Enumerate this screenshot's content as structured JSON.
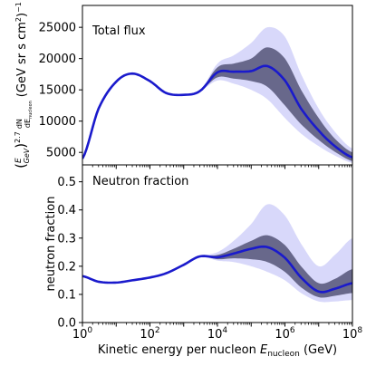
{
  "chart_data": [
    {
      "type": "line",
      "title": "Total flux",
      "xlabel": "",
      "ylabel": "(E/GeV)^2.7 dN/dE_nucleon (GeV sr s cm^2)^-1",
      "ylabel_parts": {
        "paren_open": "(",
        "frac_num": "E",
        "frac_den": "GeV",
        "paren_close": ")",
        "exp": "2.7",
        "frac2_num": "dN",
        "frac2_den": "dE",
        "frac2_den_sub": "nucleon",
        "units": "(GeV sr s cm",
        "units_sq": "2",
        "units_close": ")",
        "units_exp": "−1"
      },
      "x_scale": "log",
      "xlim": [
        1,
        100000000
      ],
      "ylim": [
        3000,
        28500
      ],
      "y_ticks": [
        5000,
        10000,
        15000,
        20000,
        25000
      ],
      "y_tick_labels": [
        "5000",
        "10000",
        "15000",
        "20000",
        "25000"
      ],
      "x": [
        1,
        3,
        10,
        30,
        100,
        300,
        1000,
        3000,
        10000,
        30000,
        100000,
        300000,
        1000000,
        3000000,
        10000000,
        30000000,
        100000000
      ],
      "series": [
        {
          "values": [
            4000,
            12000,
            16300,
            17600,
            16400,
            14500,
            14200,
            14800,
            17800,
            17900,
            18000,
            18800,
            16500,
            12000,
            8500,
            6000,
            4200
          ],
          "band_low": [
            4000,
            12000,
            16300,
            17600,
            16400,
            14500,
            14200,
            14800,
            17000,
            16800,
            16400,
            15500,
            12500,
            9500,
            7000,
            5100,
            3600
          ],
          "band_high": [
            4000,
            12000,
            16300,
            17600,
            16400,
            14500,
            14200,
            14800,
            18600,
            19200,
            20000,
            21800,
            20000,
            15000,
            10500,
            7200,
            5000
          ],
          "spread_low": [
            4000,
            12000,
            16300,
            17600,
            16400,
            14500,
            14200,
            14800,
            16500,
            16000,
            15000,
            13500,
            10500,
            8000,
            6000,
            4500,
            3300
          ],
          "spread_high": [
            4000,
            12000,
            16300,
            17600,
            16400,
            14500,
            14200,
            14800,
            19200,
            20500,
            22500,
            25000,
            23500,
            17500,
            12000,
            8300,
            5600
          ]
        }
      ],
      "colors": {
        "line": "#1a1acc",
        "band": "#555577",
        "spread": "#b8b8f5"
      }
    },
    {
      "type": "line",
      "title": "Neutron fraction",
      "xlabel": "Kinetic energy per nucleon",
      "xlabel_math": "E",
      "xlabel_sub": "nucleon",
      "xlabel_units": "(GeV)",
      "ylabel": "neutron fraction",
      "x_scale": "log",
      "xlim": [
        1,
        100000000
      ],
      "ylim": [
        0.0,
        0.56
      ],
      "y_ticks": [
        0.0,
        0.1,
        0.2,
        0.3,
        0.4,
        0.5
      ],
      "y_tick_labels": [
        "0.0",
        "0.1",
        "0.2",
        "0.3",
        "0.4",
        "0.5"
      ],
      "x_ticks": [
        1,
        100,
        10000,
        1000000,
        100000000
      ],
      "x_tick_labels": [
        {
          "base": "10",
          "exp": "0"
        },
        {
          "base": "10",
          "exp": "2"
        },
        {
          "base": "10",
          "exp": "4"
        },
        {
          "base": "10",
          "exp": "6"
        },
        {
          "base": "10",
          "exp": "8"
        }
      ],
      "x": [
        1,
        3,
        10,
        30,
        100,
        300,
        1000,
        3000,
        10000,
        30000,
        100000,
        300000,
        1000000,
        3000000,
        10000000,
        30000000,
        100000000
      ],
      "series": [
        {
          "values": [
            0.165,
            0.145,
            0.142,
            0.15,
            0.16,
            0.175,
            0.205,
            0.235,
            0.232,
            0.245,
            0.262,
            0.268,
            0.23,
            0.16,
            0.11,
            0.12,
            0.14
          ],
          "band_low": [
            0.165,
            0.145,
            0.142,
            0.15,
            0.16,
            0.175,
            0.205,
            0.235,
            0.225,
            0.228,
            0.225,
            0.215,
            0.18,
            0.125,
            0.09,
            0.095,
            0.105
          ],
          "band_high": [
            0.165,
            0.145,
            0.142,
            0.15,
            0.16,
            0.175,
            0.205,
            0.235,
            0.24,
            0.262,
            0.29,
            0.31,
            0.275,
            0.2,
            0.14,
            0.155,
            0.19
          ],
          "spread_low": [
            0.165,
            0.145,
            0.142,
            0.15,
            0.16,
            0.175,
            0.205,
            0.235,
            0.22,
            0.215,
            0.2,
            0.18,
            0.15,
            0.105,
            0.075,
            0.075,
            0.08
          ],
          "spread_high": [
            0.165,
            0.145,
            0.142,
            0.15,
            0.16,
            0.175,
            0.205,
            0.235,
            0.25,
            0.29,
            0.35,
            0.42,
            0.38,
            0.28,
            0.2,
            0.24,
            0.3
          ]
        }
      ],
      "colors": {
        "line": "#1a1acc",
        "band": "#555577",
        "spread": "#b8b8f5"
      }
    }
  ]
}
